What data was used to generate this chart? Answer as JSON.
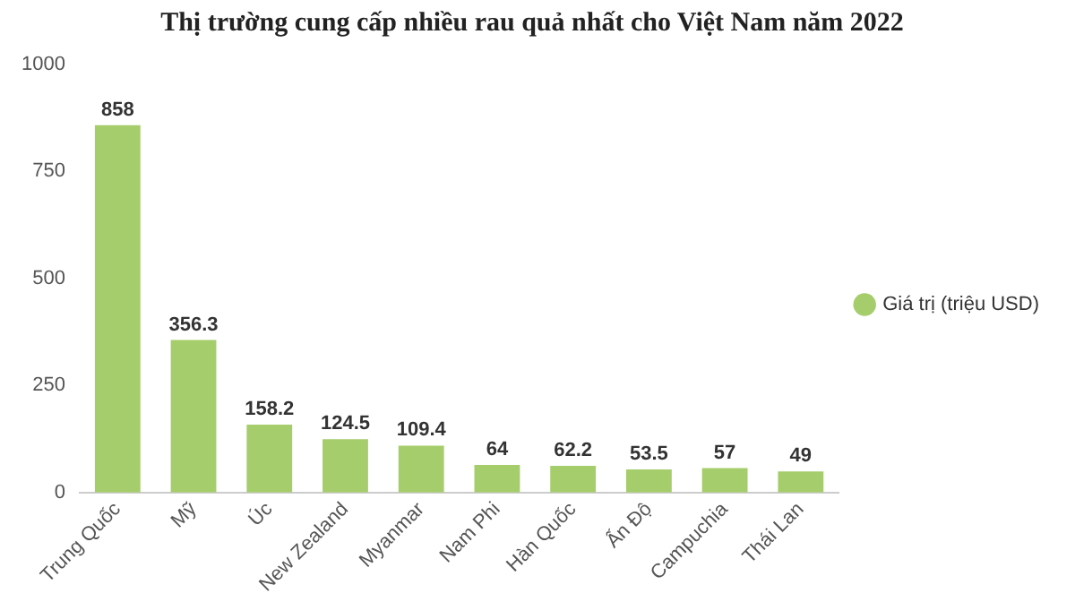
{
  "chart_data": {
    "type": "bar",
    "title": "Thị trường cung cấp nhiều rau quả nhất cho Việt Nam năm 2022",
    "categories": [
      "Trung Quốc",
      "Mỹ",
      "Úc",
      "New Zealand",
      "Myanmar",
      "Nam Phi",
      "Hàn Quốc",
      "Ấn Độ",
      "Campuchia",
      "Thái Lan"
    ],
    "series": [
      {
        "name": "Giá trị (triệu USD)",
        "color": "#a5cd6b",
        "values": [
          858,
          356.3,
          158.2,
          124.5,
          109.4,
          64,
          62.2,
          53.5,
          57,
          49
        ]
      }
    ],
    "ylim": [
      0,
      1000
    ],
    "yticks": [
      0,
      250,
      500,
      750,
      1000
    ],
    "grid": false,
    "legend": "right",
    "data_labels": true
  }
}
